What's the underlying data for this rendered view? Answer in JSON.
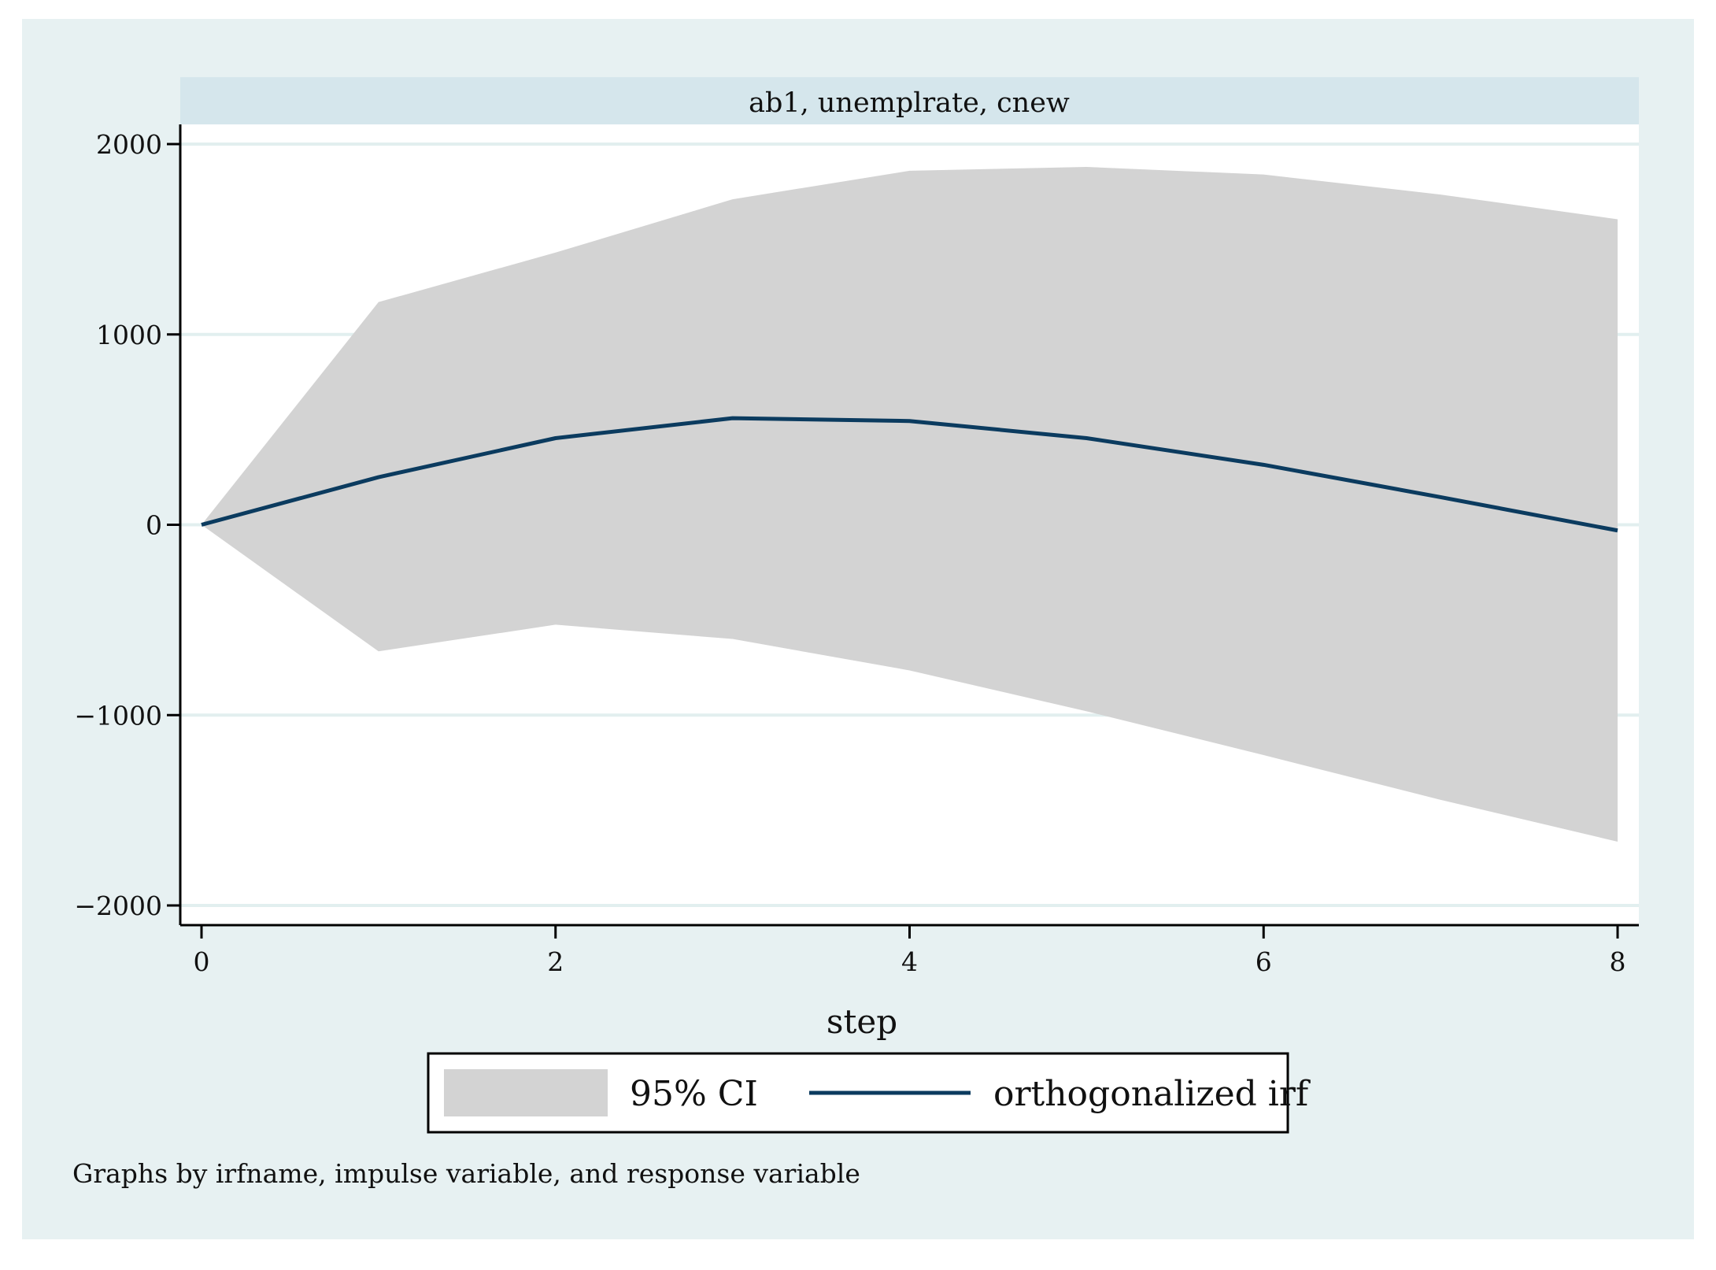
{
  "chart_data": {
    "type": "area",
    "panel_title": "ab1, unemplrate, cnew",
    "xlabel": "step",
    "ylabel": "",
    "x": [
      0,
      1,
      2,
      3,
      4,
      5,
      6,
      7,
      8
    ],
    "xlim": [
      0,
      8
    ],
    "ylim": [
      -2000,
      2000
    ],
    "x_ticks": [
      0,
      2,
      4,
      6,
      8
    ],
    "y_ticks": [
      -2000,
      -1000,
      0,
      1000,
      2000
    ],
    "grid": true,
    "legend_position": "bottom",
    "series": [
      {
        "name": "95% CI",
        "kind": "band",
        "lower": [
          0,
          -665,
          -525,
          -600,
          -765,
          -980,
          -1210,
          -1445,
          -1665
        ],
        "upper": [
          0,
          1170,
          1430,
          1710,
          1860,
          1880,
          1840,
          1735,
          1605
        ],
        "color": "#d3d3d3"
      },
      {
        "name": "orthogonalized irf",
        "kind": "line",
        "values": [
          0,
          250,
          455,
          560,
          545,
          455,
          315,
          145,
          -30
        ],
        "color": "#0b3b5f"
      }
    ],
    "note": "Graphs by irfname, impulse variable, and response variable",
    "colors": {
      "background": "#e7f1f2",
      "plot_area": "#ffffff",
      "panel_header": "#d5e6ec",
      "grid": "#e2efef"
    }
  }
}
